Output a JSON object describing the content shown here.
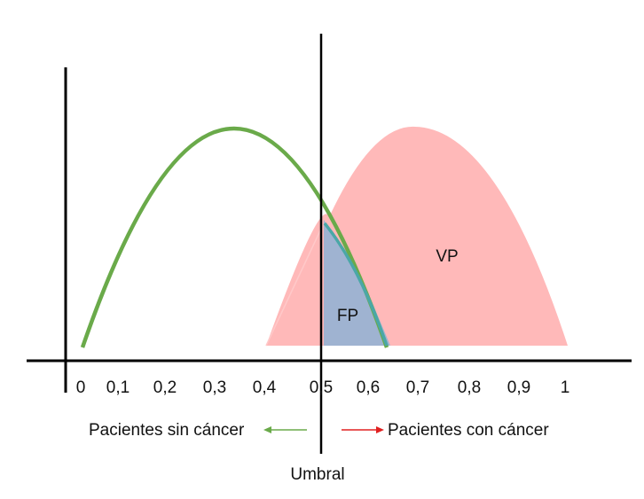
{
  "chart_data": {
    "type": "area",
    "x_ticks": [
      "0",
      "0,1",
      "0,2",
      "0,3",
      "0,4",
      "0,5",
      "0,6",
      "0,7",
      "0,8",
      "0,9",
      "1"
    ],
    "threshold": {
      "x": 0.5,
      "label": "Umbral"
    },
    "regions": {
      "false_positive": "FP",
      "true_positive": "VP"
    },
    "curves": {
      "no_cancer": {
        "peak_x": 0.32,
        "range": [
          0.0,
          0.62
        ],
        "color": "#6aaa4a"
      },
      "cancer": {
        "peak_x": 0.7,
        "range": [
          0.4,
          1.0
        ],
        "color": "#ffb9b9"
      }
    },
    "fp_color": "#9fb3d1"
  },
  "legend": {
    "left_text": "Pacientes sin cáncer",
    "right_text": "Pacientes con cáncer",
    "left_arrow_color": "#6aaa4a",
    "right_arrow_color": "#e02020"
  }
}
